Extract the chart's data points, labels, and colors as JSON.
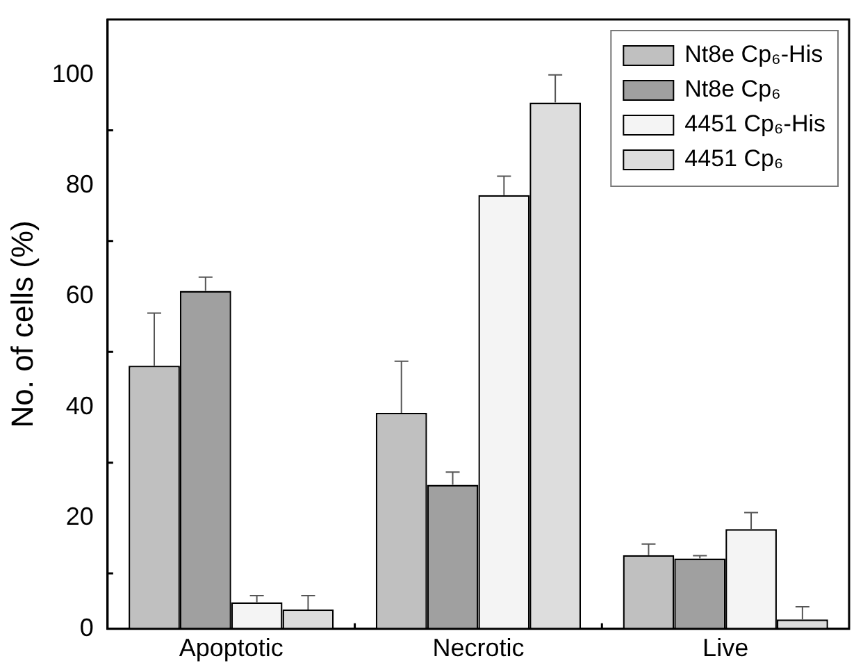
{
  "chart_data": {
    "type": "bar",
    "ylabel": "No. of cells (%)",
    "categories": [
      "Apoptotic",
      "Necrotic",
      "Live"
    ],
    "series": [
      {
        "name": "Nt8e Cp₆-His",
        "color": "#c0c0c0",
        "values": [
          47.5,
          39,
          13.3
        ],
        "errors": [
          [
            47.5,
            57
          ],
          [
            39,
            48.3
          ],
          [
            13.3,
            15.3
          ]
        ]
      },
      {
        "name": "Nt8e Cp₆",
        "color": "#a0a0a0",
        "values": [
          61,
          26,
          12.7
        ],
        "errors": [
          [
            61,
            63.5
          ],
          [
            26,
            28.3
          ],
          [
            12.7,
            13.2
          ]
        ]
      },
      {
        "name": "4451 Cp₆-His",
        "color": "#f4f4f4",
        "values": [
          4.8,
          78.3,
          18
        ],
        "errors": [
          [
            4.8,
            6
          ],
          [
            78.3,
            81.7
          ],
          [
            18,
            21
          ]
        ]
      },
      {
        "name": "4451 Cp₆",
        "color": "#dddddd",
        "values": [
          3.5,
          95,
          1.7
        ],
        "errors": [
          [
            3.5,
            6
          ],
          [
            95,
            100
          ],
          [
            1.7,
            4
          ]
        ]
      }
    ],
    "ylim": [
      0,
      110
    ],
    "yticks": [
      0,
      20,
      40,
      60,
      80,
      100
    ],
    "grid": false,
    "legend": "top right"
  }
}
